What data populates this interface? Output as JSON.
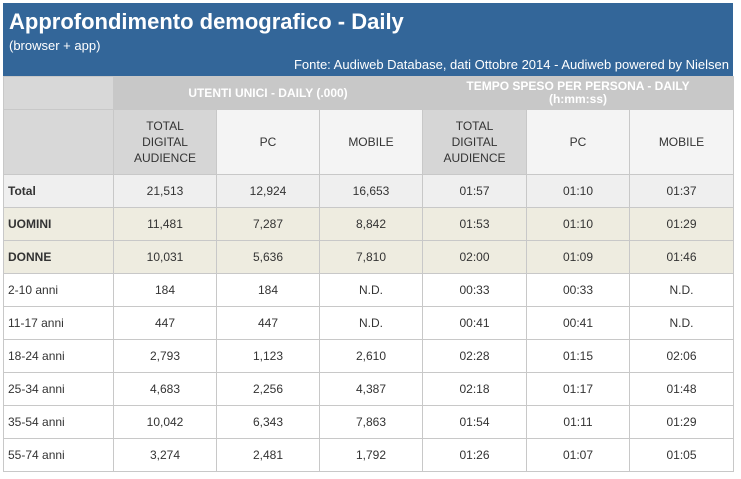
{
  "header": {
    "title": "Approfondimento demografico - Daily",
    "subtitle": "(browser + app)",
    "source": "Fonte: Audiweb Database, dati Ottobre 2014 - Audiweb powered by Nielsen"
  },
  "groups": {
    "users": "UTENTI UNICI - DAILY (.000)",
    "time_line1": "TEMPO SPESO PER PERSONA - DAILY",
    "time_line2": "(h:mm:ss)"
  },
  "columns": {
    "users_total": [
      "TOTAL",
      "DIGITAL",
      "AUDIENCE"
    ],
    "users_pc": "PC",
    "users_mobile": "MOBILE",
    "time_total": [
      "TOTAL",
      "DIGITAL",
      "AUDIENCE"
    ],
    "time_pc": "PC",
    "time_mobile": "MOBILE"
  },
  "rows": [
    {
      "label": "Total",
      "cells": [
        "21,513",
        "12,924",
        "16,653",
        "01:57",
        "01:10",
        "01:37"
      ]
    },
    {
      "label": "UOMINI",
      "cells": [
        "11,481",
        "7,287",
        "8,842",
        "01:53",
        "01:10",
        "01:29"
      ]
    },
    {
      "label": "DONNE",
      "cells": [
        "10,031",
        "5,636",
        "7,810",
        "02:00",
        "01:09",
        "01:46"
      ]
    },
    {
      "label": "2-10 anni",
      "cells": [
        "184",
        "184",
        "N.D.",
        "00:33",
        "00:33",
        "N.D."
      ]
    },
    {
      "label": "11-17 anni",
      "cells": [
        "447",
        "447",
        "N.D.",
        "00:41",
        "00:41",
        "N.D."
      ]
    },
    {
      "label": "18-24 anni",
      "cells": [
        "2,793",
        "1,123",
        "2,610",
        "02:28",
        "01:15",
        "02:06"
      ]
    },
    {
      "label": "25-34 anni",
      "cells": [
        "4,683",
        "2,256",
        "4,387",
        "02:18",
        "01:17",
        "01:48"
      ]
    },
    {
      "label": "35-54 anni",
      "cells": [
        "10,042",
        "6,343",
        "7,863",
        "01:54",
        "01:11",
        "01:29"
      ]
    },
    {
      "label": "55-74 anni",
      "cells": [
        "3,274",
        "2,481",
        "1,792",
        "01:26",
        "01:07",
        "01:05"
      ]
    }
  ],
  "colors": {
    "header_bg": "#336699",
    "group_head_bg": "#c8c8c8",
    "col_head_bg": "#d6d6d6",
    "gender_row_bg": "#eeece0",
    "total_row_bg": "#efefef"
  }
}
